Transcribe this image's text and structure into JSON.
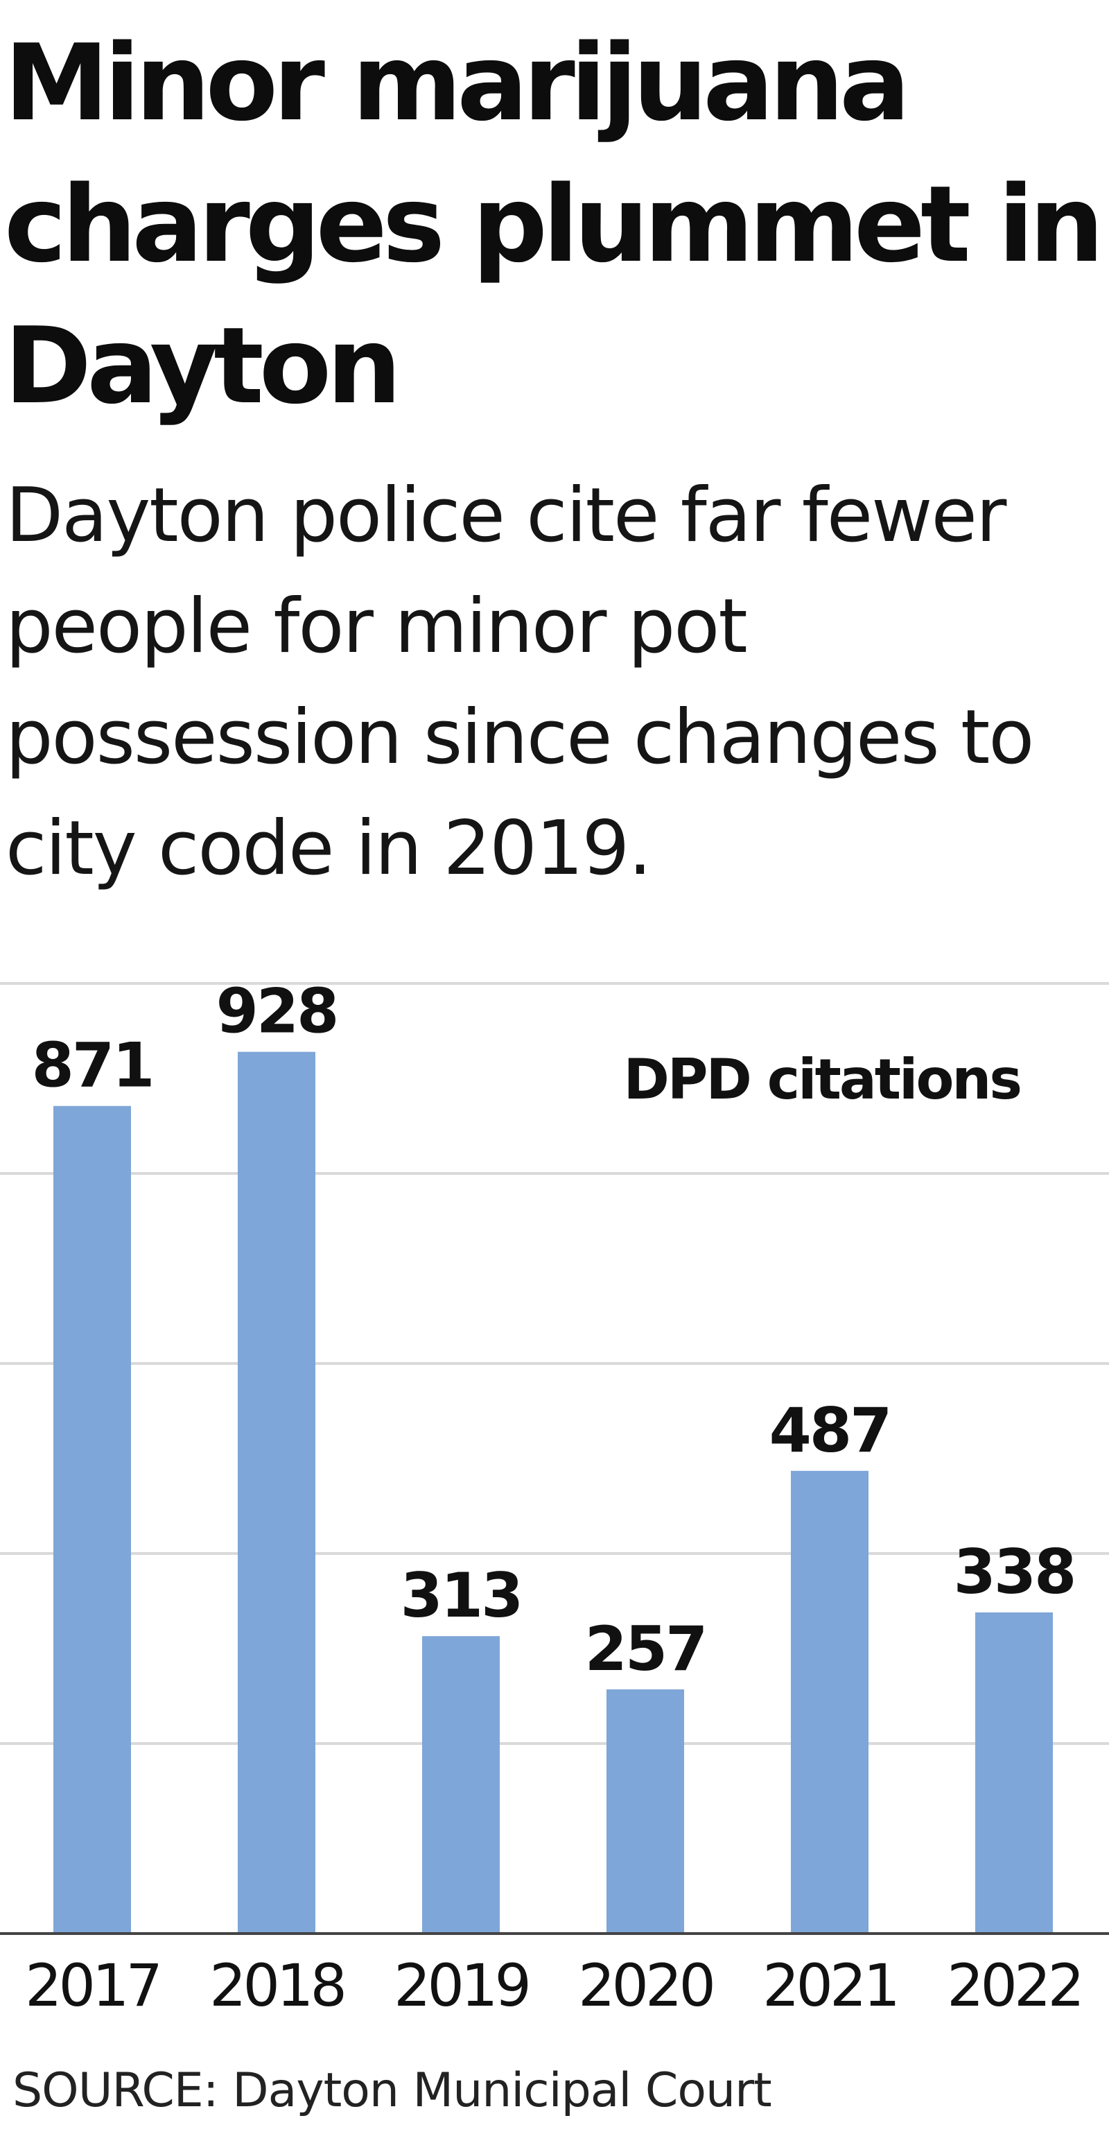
{
  "headline": "Minor marijuana charges plummet in Dayton",
  "subheadline": "Dayton police cite far fewer people for minor pot possession since changes to city code in 2019.",
  "source": "SOURCE: Dayton Municipal Court",
  "colors": {
    "bar": "#7ea6d8",
    "gridline": "#d9d9d9",
    "baseline": "#444444",
    "text": "#111111"
  },
  "chart_data": {
    "type": "bar",
    "title": "Minor marijuana charges plummet in Dayton",
    "subtitle": "Dayton police cite far fewer people for minor pot possession since changes to city code in 2019.",
    "categories": [
      "2017",
      "2018",
      "2019",
      "2020",
      "2021",
      "2022"
    ],
    "series": [
      {
        "name": "DPD citations",
        "values": [
          871,
          928,
          313,
          257,
          487,
          338
        ]
      }
    ],
    "data_labels": [
      "871",
      "928",
      "313",
      "257",
      "487",
      "338"
    ],
    "xlabel": "",
    "ylabel": "",
    "ylim": [
      0,
      1000
    ],
    "y_gridlines": [
      200,
      400,
      600,
      800,
      1000
    ],
    "y_tick_labels_shown": false,
    "grid": true,
    "legend": "top-right, inside plot"
  }
}
